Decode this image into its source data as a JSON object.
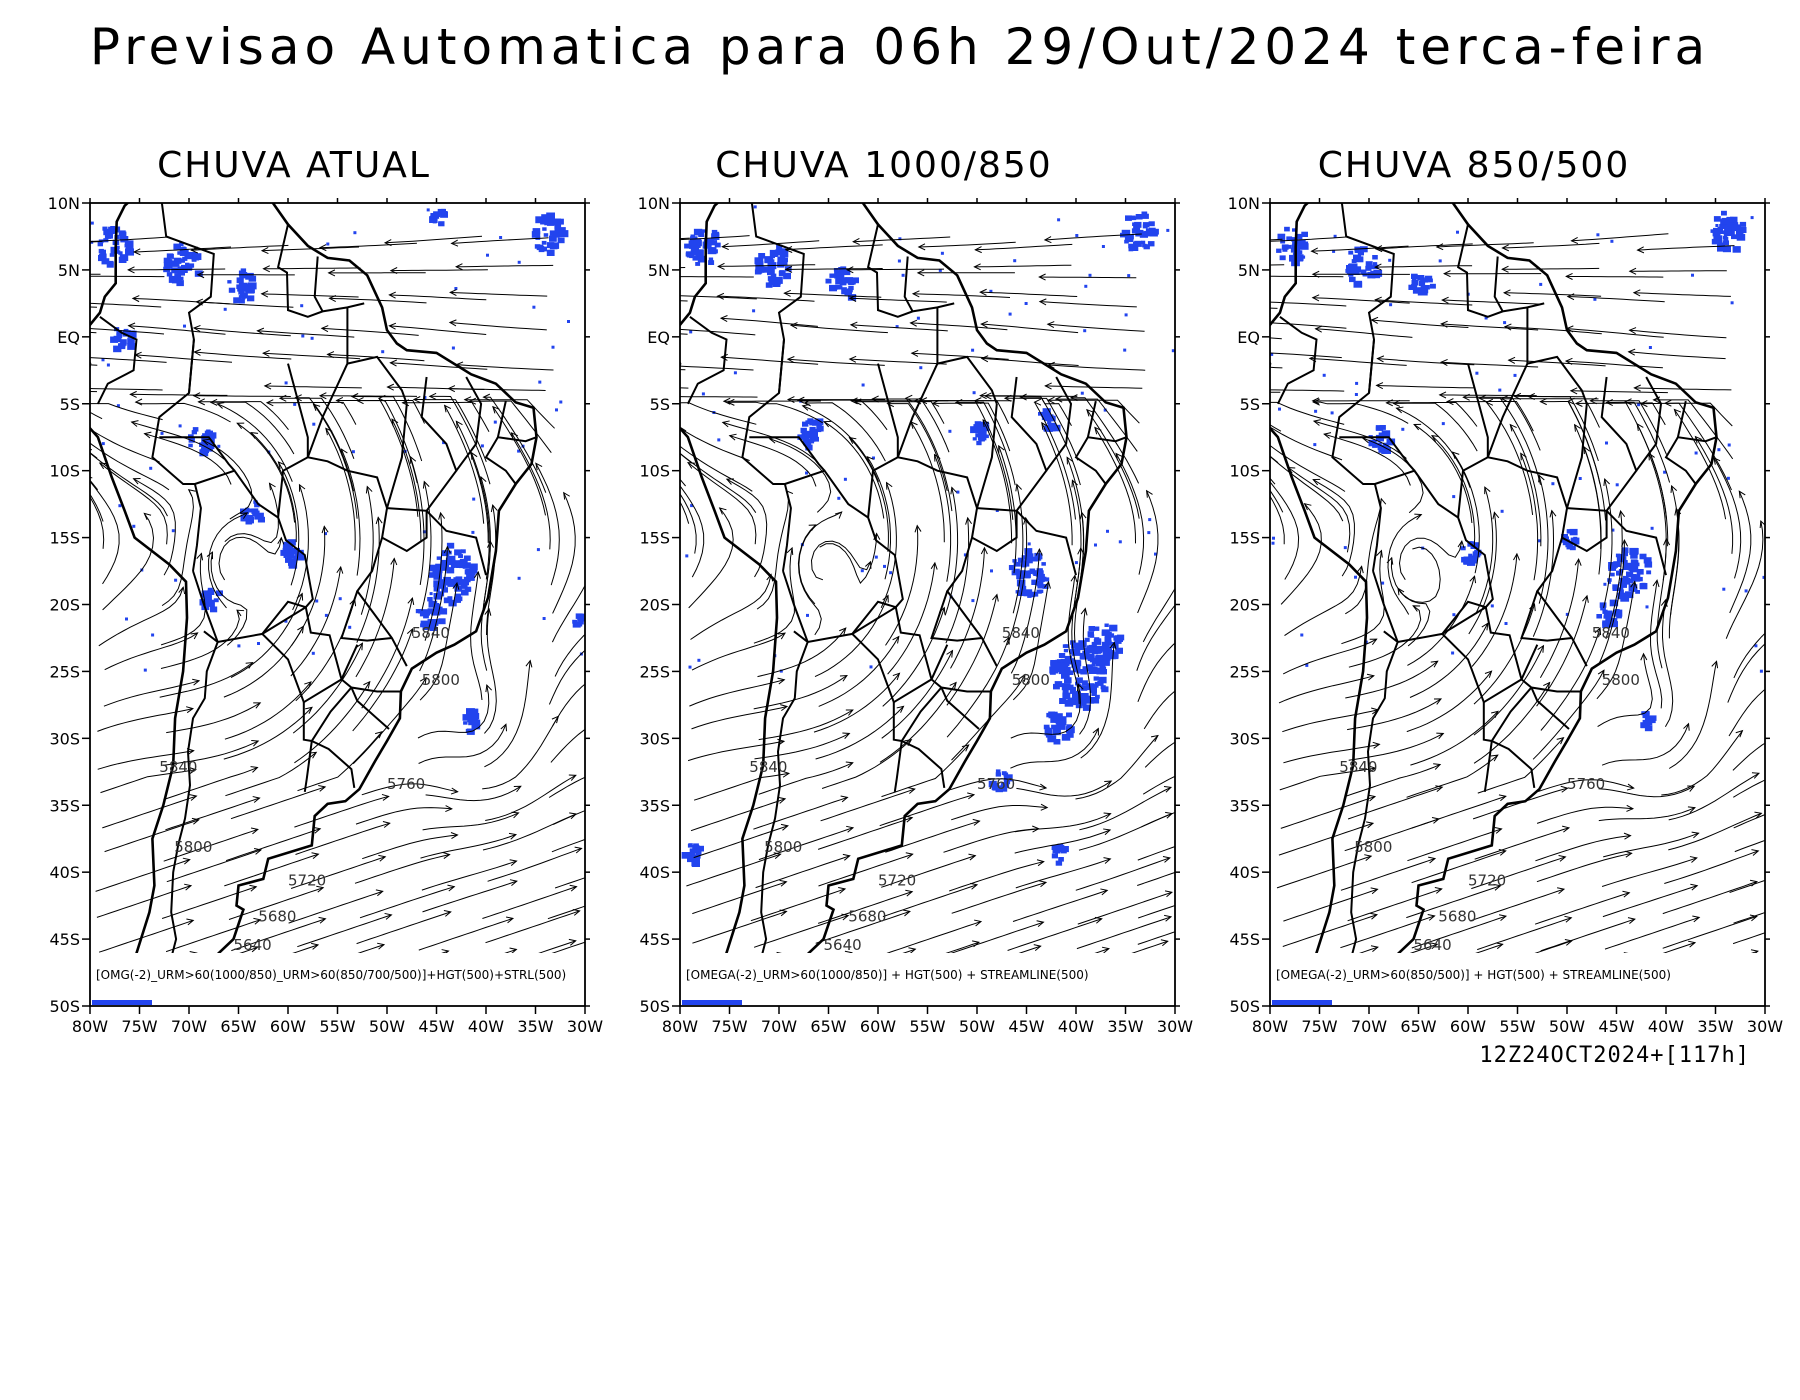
{
  "title": "Previsao Automatica para 06h 29/Out/2024 terca-feira",
  "run_info": "12Z24OCT2024+[117h]",
  "colors": {
    "precip": "#2244ee",
    "lines": "#000000",
    "background": "#ffffff"
  },
  "axes": {
    "lat_labels": [
      "10N",
      "5N",
      "EQ",
      "5S",
      "10S",
      "15S",
      "20S",
      "25S",
      "30S",
      "35S",
      "40S",
      "45S",
      "50S"
    ],
    "lat_values": [
      10,
      5,
      0,
      -5,
      -10,
      -15,
      -20,
      -25,
      -30,
      -35,
      -40,
      -45,
      -50
    ],
    "lon_labels": [
      "80W",
      "75W",
      "70W",
      "65W",
      "60W",
      "55W",
      "50W",
      "45W",
      "40W",
      "35W",
      "30W"
    ],
    "lon_values": [
      -80,
      -75,
      -70,
      -65,
      -60,
      -55,
      -50,
      -45,
      -40,
      -35,
      -30
    ],
    "lat_range": [
      -50,
      10
    ],
    "lon_range": [
      -80,
      -30
    ]
  },
  "contours": [
    {
      "label": "5840",
      "lon": -47.5,
      "lat": -22.5
    },
    {
      "label": "5800",
      "lon": -46.5,
      "lat": -26.0
    },
    {
      "label": "5760",
      "lon": -50.0,
      "lat": -33.8
    },
    {
      "label": "5840",
      "lon": -73.0,
      "lat": -32.5
    },
    {
      "label": "5800",
      "lon": -71.5,
      "lat": -38.5
    },
    {
      "label": "5720",
      "lon": -60.0,
      "lat": -41.0
    },
    {
      "label": "5680",
      "lon": -63.0,
      "lat": -43.7
    },
    {
      "label": "5640",
      "lon": -65.5,
      "lat": -45.8
    }
  ],
  "panels": [
    {
      "title": "CHUVA ATUAL",
      "legend": "[OMG(-2)_URM>60(1000/850)_URM>60(850/700/500)]+HGT(500)+STRL(500)",
      "precip": [
        {
          "lon": -78,
          "lat": 7,
          "r": 1.5
        },
        {
          "lon": -71,
          "lat": 5.5,
          "r": 1.6
        },
        {
          "lon": -65,
          "lat": 4,
          "r": 1.2
        },
        {
          "lon": -77,
          "lat": 0,
          "r": 0.9
        },
        {
          "lon": -69,
          "lat": -7.5,
          "r": 1.1
        },
        {
          "lon": -64,
          "lat": -13,
          "r": 1.0
        },
        {
          "lon": -60,
          "lat": -16,
          "r": 0.9
        },
        {
          "lon": -44,
          "lat": -17.5,
          "r": 2.2
        },
        {
          "lon": -46,
          "lat": -20.5,
          "r": 1.2
        },
        {
          "lon": -42,
          "lat": -28.5,
          "r": 0.8
        },
        {
          "lon": -34,
          "lat": 8,
          "r": 1.5
        },
        {
          "lon": -45,
          "lat": 9,
          "r": 0.7
        },
        {
          "lon": -68,
          "lat": -19.5,
          "r": 0.9
        },
        {
          "lon": -31,
          "lat": -21,
          "r": 0.5
        }
      ]
    },
    {
      "title": "CHUVA 1000/850",
      "legend": "[OMEGA(-2)_URM>60(1000/850)] + HGT(500) + STREAMLINE(500)",
      "precip": [
        {
          "lon": -78,
          "lat": 7,
          "r": 1.5
        },
        {
          "lon": -71,
          "lat": 5.5,
          "r": 1.6
        },
        {
          "lon": -64,
          "lat": 4,
          "r": 1.3
        },
        {
          "lon": -67,
          "lat": -7,
          "r": 1.2
        },
        {
          "lon": -45,
          "lat": -17.5,
          "r": 1.8
        },
        {
          "lon": -40,
          "lat": -25,
          "r": 2.6
        },
        {
          "lon": -37.5,
          "lat": -23,
          "r": 1.8
        },
        {
          "lon": -42,
          "lat": -29,
          "r": 1.3
        },
        {
          "lon": -43,
          "lat": -6,
          "r": 0.9
        },
        {
          "lon": -34,
          "lat": 8,
          "r": 1.5
        },
        {
          "lon": -48,
          "lat": -33,
          "r": 0.8
        },
        {
          "lon": -42,
          "lat": -38.5,
          "r": 0.7
        },
        {
          "lon": -50,
          "lat": -7,
          "r": 0.8
        },
        {
          "lon": -79,
          "lat": -38.5,
          "r": 0.8
        }
      ]
    },
    {
      "title": "CHUVA 850/500",
      "legend": "[OMEGA(-2)_URM>60(850/500)] + HGT(500) + STREAMLINE(500)",
      "precip": [
        {
          "lon": -78,
          "lat": 7,
          "r": 1.4
        },
        {
          "lon": -71,
          "lat": 5.5,
          "r": 1.5
        },
        {
          "lon": -65,
          "lat": 4,
          "r": 1.1
        },
        {
          "lon": -69,
          "lat": -7.5,
          "r": 1.0
        },
        {
          "lon": -44,
          "lat": -17.5,
          "r": 1.9
        },
        {
          "lon": -46,
          "lat": -20.5,
          "r": 1.0
        },
        {
          "lon": -42,
          "lat": -28.5,
          "r": 0.7
        },
        {
          "lon": -34,
          "lat": 8,
          "r": 1.5
        },
        {
          "lon": -60,
          "lat": -16,
          "r": 0.8
        },
        {
          "lon": -50,
          "lat": -15,
          "r": 0.7
        }
      ]
    }
  ]
}
